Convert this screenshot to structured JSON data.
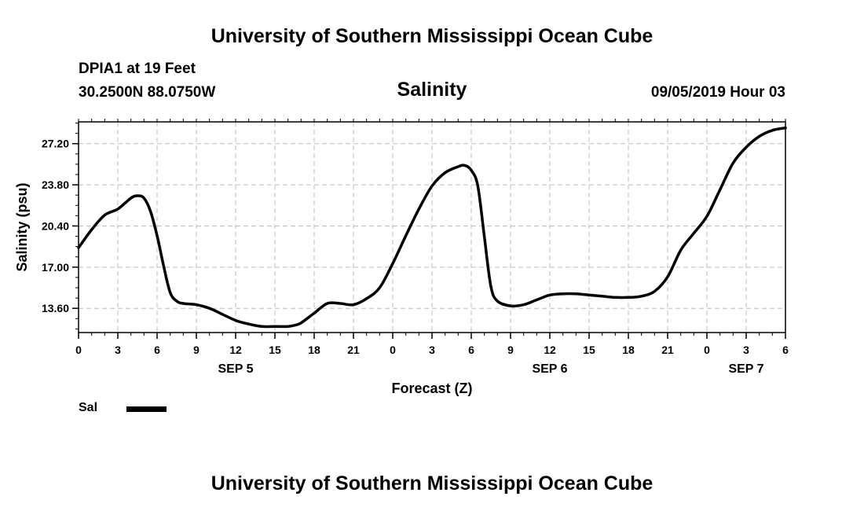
{
  "header": {
    "organization_top": "University of Southern Mississippi Ocean Cube",
    "station": "DPIA1 at 19 Feet",
    "coordinates": "30.2500N 88.0750W",
    "chart_title": "Salinity",
    "datetime": "09/05/2019 Hour 03"
  },
  "footer": {
    "organization_bottom": "University of Southern Mississippi Ocean Cube"
  },
  "chart_data": {
    "type": "line",
    "ylabel": "Salinity (psu)",
    "xlabel": "Forecast (Z)",
    "xlim": [
      0,
      54
    ],
    "ylim": [
      11.6,
      29.0
    ],
    "y_ticks": [
      13.6,
      17.0,
      20.4,
      23.8,
      27.2
    ],
    "y_tick_labels": [
      "13.60",
      "17.00",
      "20.40",
      "23.80",
      "27.20"
    ],
    "x_ticks": [
      0,
      3,
      6,
      9,
      12,
      15,
      18,
      21,
      24,
      27,
      30,
      33,
      36,
      39,
      42,
      45,
      48,
      51,
      54
    ],
    "x_tick_labels": [
      "0",
      "3",
      "6",
      "9",
      "12",
      "15",
      "18",
      "21",
      "0",
      "3",
      "6",
      "9",
      "12",
      "15",
      "18",
      "21",
      "0",
      "3",
      "6"
    ],
    "day_labels": [
      {
        "x": 12,
        "label": "SEP 5"
      },
      {
        "x": 36,
        "label": "SEP 6"
      },
      {
        "x": 51,
        "label": "SEP 7"
      }
    ],
    "grid": true,
    "legend_position": "bottom-left",
    "series": [
      {
        "name": "Sal",
        "color": "#000000",
        "x": [
          0,
          1,
          2,
          3,
          4,
          4.5,
          5,
          5.5,
          6,
          6.5,
          7,
          7.5,
          8,
          9,
          10,
          11,
          12,
          13,
          14,
          15,
          16,
          16.5,
          17,
          18,
          19,
          20,
          21,
          22,
          23,
          24,
          25,
          26,
          27,
          28,
          29,
          29.5,
          30,
          30.5,
          31,
          31.5,
          32,
          33,
          34,
          35,
          36,
          37,
          38,
          39,
          40,
          41,
          42,
          43,
          44,
          45,
          46,
          47,
          48,
          49,
          50,
          51,
          52,
          53,
          54
        ],
        "y": [
          18.6,
          20.1,
          21.3,
          21.8,
          22.7,
          22.9,
          22.7,
          21.6,
          19.6,
          17.1,
          14.9,
          14.2,
          14.0,
          13.9,
          13.6,
          13.1,
          12.6,
          12.3,
          12.1,
          12.1,
          12.1,
          12.2,
          12.4,
          13.2,
          14.0,
          14.0,
          13.9,
          14.4,
          15.3,
          17.3,
          19.6,
          21.8,
          23.7,
          24.8,
          25.3,
          25.4,
          25.0,
          23.7,
          19.5,
          15.4,
          14.2,
          13.8,
          13.9,
          14.3,
          14.7,
          14.8,
          14.8,
          14.7,
          14.6,
          14.5,
          14.5,
          14.6,
          15.0,
          16.2,
          18.4,
          19.8,
          21.2,
          23.4,
          25.6,
          26.9,
          27.8,
          28.3,
          28.5
        ]
      }
    ]
  }
}
